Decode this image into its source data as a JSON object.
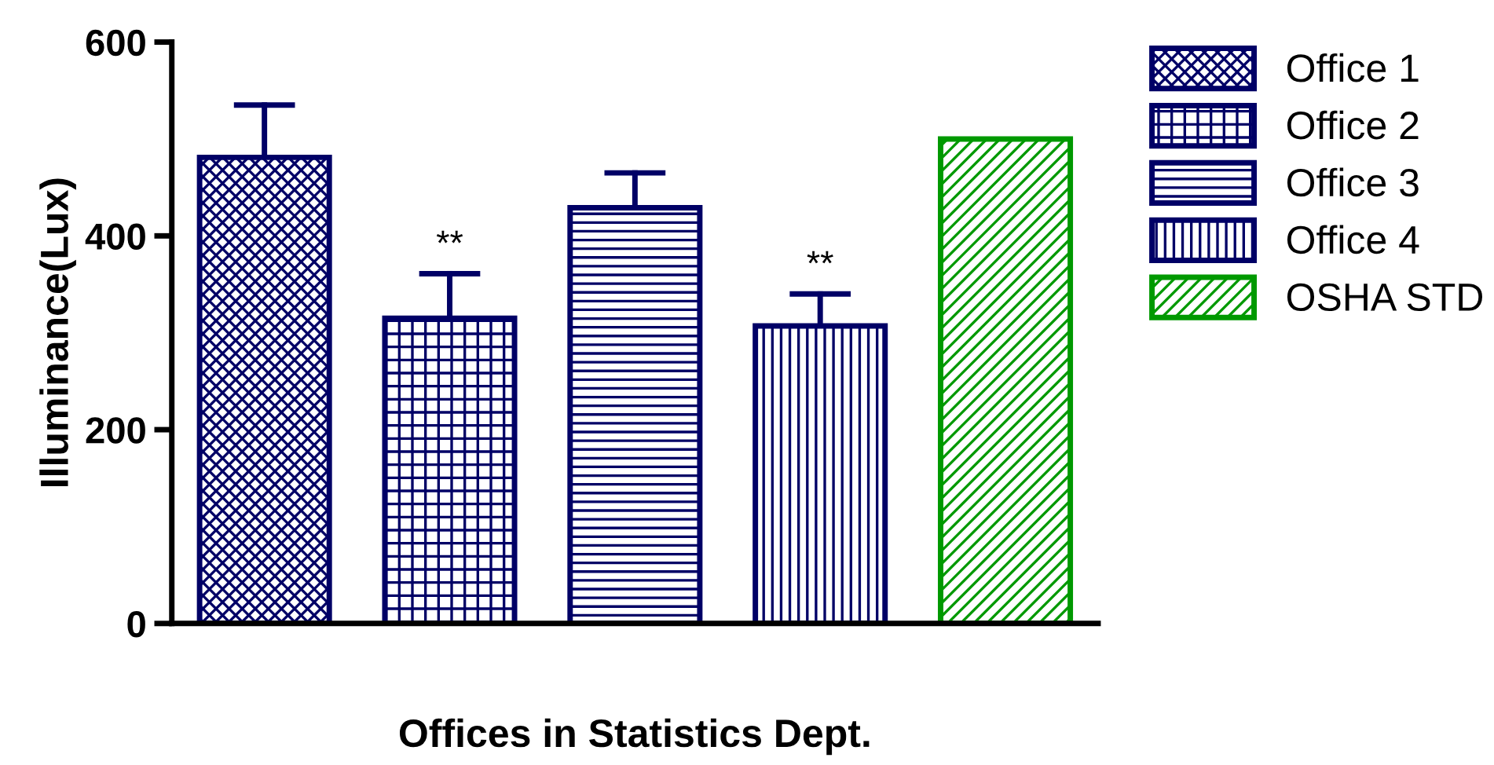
{
  "chart_data": {
    "type": "bar",
    "xlabel": "Offices in Statistics Dept.",
    "ylabel": "Illuminance(Lux)",
    "categories": [
      null,
      null,
      null,
      null,
      null
    ],
    "series": [
      {
        "name": "Office 1",
        "color": "#000066",
        "values": [
          481,
          null,
          null,
          null,
          null
        ],
        "errors": [
          [
            481,
            535
          ],
          null,
          null,
          null,
          null
        ]
      },
      {
        "name": "Office 2",
        "color": "#000066",
        "values": [
          null,
          315,
          null,
          null,
          null
        ],
        "errors": [
          null,
          [
            315,
            361
          ],
          null,
          null,
          null
        ],
        "value_labels": [
          null,
          "**",
          null,
          null,
          null
        ]
      },
      {
        "name": "Office 3",
        "color": "#000066",
        "values": [
          null,
          null,
          429,
          null,
          null
        ],
        "errors": [
          null,
          null,
          [
            429,
            465
          ],
          null,
          null
        ]
      },
      {
        "name": "Office 4",
        "color": "#000066",
        "values": [
          null,
          null,
          null,
          307,
          null
        ],
        "errors": [
          null,
          null,
          null,
          [
            307,
            340
          ],
          null
        ],
        "value_labels": [
          null,
          null,
          null,
          "**",
          null
        ]
      },
      {
        "name": "OSHA STD",
        "color": "#009900",
        "values": [
          null,
          null,
          null,
          null,
          500
        ]
      }
    ],
    "ylim": [
      0,
      600
    ],
    "yticks": [
      0,
      200,
      400,
      600
    ],
    "grid": false,
    "legend": "right"
  }
}
